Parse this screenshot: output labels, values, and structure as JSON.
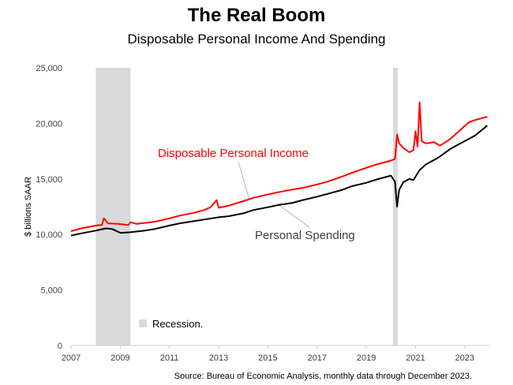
{
  "title": "The Real Boom",
  "subtitle": "Disposable Personal Income And Spending",
  "chart_data": {
    "type": "line",
    "ylabel": "$ billions SAAR",
    "ylim": [
      0,
      25000
    ],
    "xlim": [
      "2007-01",
      "2024-01"
    ],
    "y_ticks": [
      "0",
      "5,000",
      "10,000",
      "15,000",
      "20,000",
      "25,000"
    ],
    "x_ticks": [
      "2007",
      "2009",
      "2011",
      "2013",
      "2015",
      "2017",
      "2019",
      "2021",
      "2023"
    ],
    "recession_periods": [
      [
        "2008-01",
        "2009-06"
      ],
      [
        "2020-02",
        "2020-04"
      ]
    ],
    "legend": {
      "recession_label": "Recession.",
      "position": "bottom-left"
    },
    "series": [
      {
        "name": "Disposable Personal Income",
        "color": "#ff0000",
        "points": [
          [
            "2007-01",
            10300
          ],
          [
            "2007-06",
            10550
          ],
          [
            "2008-01",
            10800
          ],
          [
            "2008-04",
            10850
          ],
          [
            "2008-05",
            11450
          ],
          [
            "2008-07",
            11000
          ],
          [
            "2008-12",
            10950
          ],
          [
            "2009-05",
            10850
          ],
          [
            "2009-06",
            11100
          ],
          [
            "2009-09",
            10950
          ],
          [
            "2010-06",
            11150
          ],
          [
            "2011-01",
            11450
          ],
          [
            "2011-06",
            11700
          ],
          [
            "2012-01",
            11950
          ],
          [
            "2012-06",
            12200
          ],
          [
            "2012-09",
            12450
          ],
          [
            "2012-12",
            13100
          ],
          [
            "2013-01",
            12400
          ],
          [
            "2013-06",
            12600
          ],
          [
            "2014-01",
            13000
          ],
          [
            "2014-06",
            13300
          ],
          [
            "2015-01",
            13600
          ],
          [
            "2015-06",
            13800
          ],
          [
            "2016-01",
            14050
          ],
          [
            "2016-06",
            14200
          ],
          [
            "2017-01",
            14500
          ],
          [
            "2017-06",
            14750
          ],
          [
            "2018-01",
            15200
          ],
          [
            "2018-06",
            15550
          ],
          [
            "2019-01",
            16000
          ],
          [
            "2019-06",
            16300
          ],
          [
            "2020-01",
            16650
          ],
          [
            "2020-03",
            16800
          ],
          [
            "2020-04",
            19000
          ],
          [
            "2020-05",
            18200
          ],
          [
            "2020-07",
            17800
          ],
          [
            "2020-10",
            17400
          ],
          [
            "2020-12",
            17600
          ],
          [
            "2021-01",
            19300
          ],
          [
            "2021-02",
            17900
          ],
          [
            "2021-03",
            21900
          ],
          [
            "2021-04",
            18400
          ],
          [
            "2021-06",
            18200
          ],
          [
            "2021-10",
            18300
          ],
          [
            "2022-01",
            18000
          ],
          [
            "2022-06",
            18600
          ],
          [
            "2022-12",
            19600
          ],
          [
            "2023-03",
            20100
          ],
          [
            "2023-06",
            20300
          ],
          [
            "2023-12",
            20600
          ]
        ]
      },
      {
        "name": "Personal Spending",
        "color": "#000000",
        "points": [
          [
            "2007-01",
            9900
          ],
          [
            "2007-06",
            10100
          ],
          [
            "2008-01",
            10350
          ],
          [
            "2008-06",
            10550
          ],
          [
            "2008-09",
            10500
          ],
          [
            "2009-01",
            10150
          ],
          [
            "2009-06",
            10200
          ],
          [
            "2010-01",
            10350
          ],
          [
            "2010-06",
            10500
          ],
          [
            "2011-01",
            10800
          ],
          [
            "2011-06",
            11000
          ],
          [
            "2012-01",
            11200
          ],
          [
            "2012-06",
            11350
          ],
          [
            "2013-01",
            11550
          ],
          [
            "2013-06",
            11650
          ],
          [
            "2014-01",
            11900
          ],
          [
            "2014-06",
            12200
          ],
          [
            "2015-01",
            12450
          ],
          [
            "2015-06",
            12650
          ],
          [
            "2016-01",
            12850
          ],
          [
            "2016-06",
            13100
          ],
          [
            "2017-01",
            13400
          ],
          [
            "2017-06",
            13650
          ],
          [
            "2018-01",
            14000
          ],
          [
            "2018-06",
            14350
          ],
          [
            "2019-01",
            14650
          ],
          [
            "2019-06",
            14950
          ],
          [
            "2020-01",
            15300
          ],
          [
            "2020-03",
            14750
          ],
          [
            "2020-04",
            12500
          ],
          [
            "2020-05",
            14000
          ],
          [
            "2020-07",
            14700
          ],
          [
            "2020-10",
            15000
          ],
          [
            "2020-12",
            14900
          ],
          [
            "2021-03",
            15800
          ],
          [
            "2021-06",
            16300
          ],
          [
            "2021-12",
            16900
          ],
          [
            "2022-06",
            17700
          ],
          [
            "2022-12",
            18300
          ],
          [
            "2023-06",
            18900
          ],
          [
            "2023-12",
            19800
          ]
        ]
      }
    ],
    "annotations": [
      {
        "text": "Disposable Personal Income",
        "color": "#ff0000",
        "pointer_to": [
          "2014-04",
          13100
        ]
      },
      {
        "text": "Personal Spending",
        "color": "#404040",
        "pointer_to": [
          "2015-06",
          12700
        ]
      }
    ],
    "source": "Source: Bureau of Economic Analysis, monthly data through December 2023."
  }
}
